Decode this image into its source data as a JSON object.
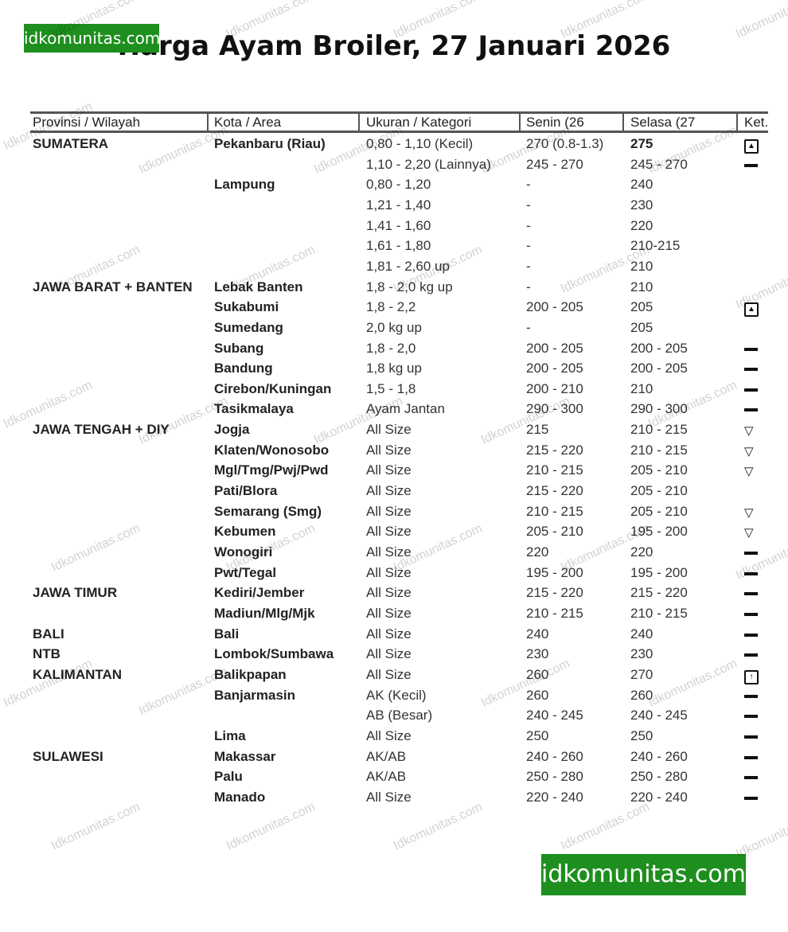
{
  "title": "Harga Ayam Broiler, 27 Januari 2026",
  "badge_top": "idkomunitas.com",
  "badge_bottom": "idkomunitas.com",
  "watermark": "Idkomunitas.com",
  "headers": [
    "Provinsi / Wilayah",
    "Kota / Area",
    "Ukuran / Kategori",
    "Senin (26",
    "Selasa (27",
    "Ket."
  ],
  "rows": [
    [
      "SUMATERA",
      "Pekanbaru (Riau)",
      "0,80 - 1,10 (Kecil)",
      "270 (0.8-1.3)",
      "275",
      "up"
    ],
    [
      "",
      "",
      "1,10 - 2,20 (Lainnya)",
      "245 - 270",
      "245 - 270",
      "dash"
    ],
    [
      "",
      "Lampung",
      "0,80 - 1,20",
      "-",
      "240",
      ""
    ],
    [
      "",
      "",
      "1,21 - 1,40",
      "-",
      "230",
      ""
    ],
    [
      "",
      "",
      "1,41 - 1,60",
      "-",
      "220",
      ""
    ],
    [
      "",
      "",
      "1,61 - 1,80",
      "-",
      "210-215",
      ""
    ],
    [
      "",
      "",
      "1,81 - 2,60 up",
      "-",
      "210",
      ""
    ],
    [
      "JAWA BARAT + BANTEN",
      "Lebak Banten",
      "1,8 - 2,0 kg up",
      "-",
      "210",
      ""
    ],
    [
      "",
      "Sukabumi",
      "1,8 - 2,2",
      "200 - 205",
      "205",
      "up"
    ],
    [
      "",
      "Sumedang",
      "2,0 kg up",
      "-",
      "205",
      ""
    ],
    [
      "",
      "Subang",
      "1,8 - 2,0",
      "200 - 205",
      "200 - 205",
      "dash"
    ],
    [
      "",
      "Bandung",
      "1,8 kg up",
      "200 - 205",
      "200 - 205",
      "dash"
    ],
    [
      "",
      "Cirebon/Kuningan",
      "1,5 - 1,8",
      "200 - 210",
      "210",
      "dash"
    ],
    [
      "",
      "Tasikmalaya",
      "Ayam Jantan",
      "290 - 300",
      "290 - 300",
      "dash"
    ],
    [
      "JAWA TENGAH + DIY",
      "Jogja",
      "All Size",
      "215",
      "210 - 215",
      "down"
    ],
    [
      "",
      "Klaten/Wonosobo",
      "All Size",
      "215 - 220",
      "210 - 215",
      "down"
    ],
    [
      "",
      "Mgl/Tmg/Pwj/Pwd",
      "All Size",
      "210 - 215",
      "205 - 210",
      "down"
    ],
    [
      "",
      "Pati/Blora",
      "All Size",
      "215 - 220",
      "205 - 210",
      ""
    ],
    [
      "",
      "Semarang (Smg)",
      "All Size",
      "210 - 215",
      "205 - 210",
      "down"
    ],
    [
      "",
      "Kebumen",
      "All Size",
      "205 - 210",
      "195 - 200",
      "down"
    ],
    [
      "",
      "Wonogiri",
      "All Size",
      "220",
      "220",
      "dash"
    ],
    [
      "",
      "Pwt/Tegal",
      "All Size",
      "195 - 200",
      "195 - 200",
      "dash"
    ],
    [
      "JAWA TIMUR",
      "Kediri/Jember",
      "All Size",
      "215 - 220",
      "215 - 220",
      "dash"
    ],
    [
      "",
      "Madiun/Mlg/Mjk",
      "All Size",
      "210 - 215",
      "210 - 215",
      "dash"
    ],
    [
      "BALI",
      "Bali",
      "All Size",
      "240",
      "240",
      "dash"
    ],
    [
      "NTB",
      "Lombok/Sumbawa",
      "All Size",
      "230",
      "230",
      "dash"
    ],
    [
      "KALIMANTAN",
      "Balikpapan",
      "All Size",
      "260",
      "270",
      "uparrow"
    ],
    [
      "",
      "Banjarmasin",
      "AK (Kecil)",
      "260",
      "260",
      "dash"
    ],
    [
      "",
      "",
      "AB (Besar)",
      "240 - 245",
      "240 - 245",
      "dash"
    ],
    [
      "",
      "Lima",
      "All Size",
      "250",
      "250",
      "dash"
    ],
    [
      "SULAWESI",
      "Makassar",
      "AK/AB",
      "240 - 260",
      "240 - 260",
      "dash"
    ],
    [
      "",
      "Palu",
      "AK/AB",
      "250 - 280",
      "250 - 280",
      "dash"
    ],
    [
      "",
      "Manado",
      "All Size",
      "220 - 240",
      "220 - 240",
      "dash"
    ]
  ]
}
